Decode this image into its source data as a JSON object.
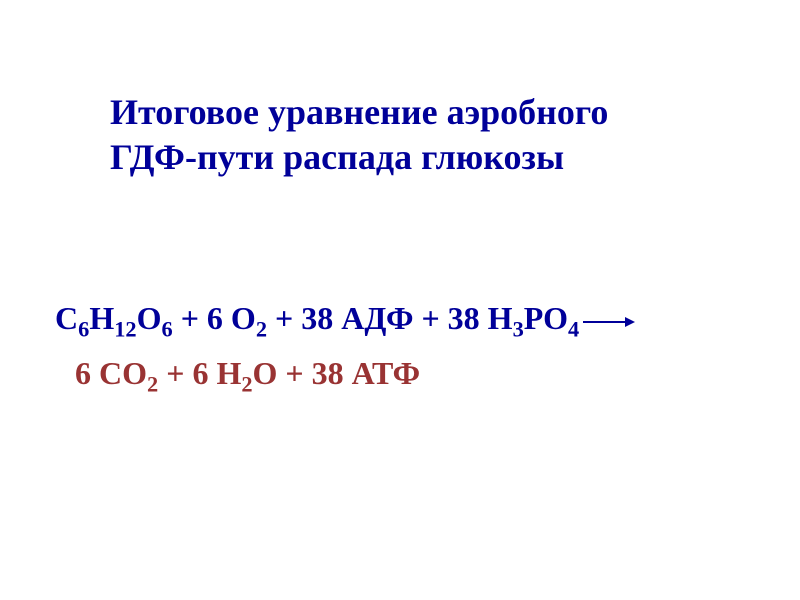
{
  "title": {
    "line1": "Итоговое уравнение аэробного",
    "line2": "ГДФ-пути распада глюкозы",
    "color": "#000099",
    "fontsize": 36,
    "fontweight": "bold"
  },
  "equation": {
    "reactants": {
      "color": "#000099",
      "parts": [
        {
          "base": "С",
          "sub": "6"
        },
        {
          "base": "Н",
          "sub": "12"
        },
        {
          "base": "О",
          "sub": "6"
        },
        {
          "text": "  +  6 О",
          "sub": "2"
        },
        {
          "text": "  +  38 АДФ  +  38 Н",
          "sub": "3"
        },
        {
          "base": "РО",
          "sub": "4"
        }
      ]
    },
    "products": {
      "color": "#993333",
      "parts": [
        {
          "text": "6 СО",
          "sub": "2"
        },
        {
          "text": "    +  6 Н",
          "sub": "2"
        },
        {
          "text": "О   +  38 АТФ"
        }
      ]
    },
    "fontsize": 32,
    "background_color": "#ffffff"
  }
}
